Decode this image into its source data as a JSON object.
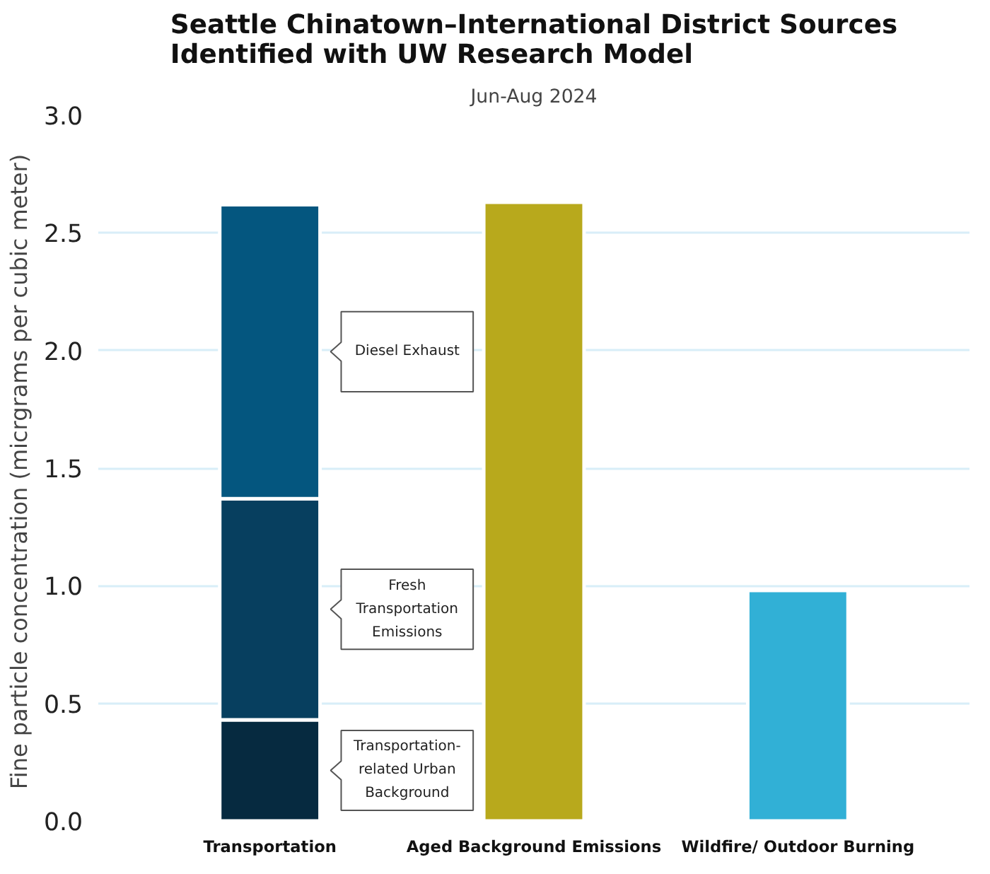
{
  "chart_data": {
    "type": "bar",
    "title": "Seattle Chinatown–International District Sources Identified with UW Research Model",
    "subtitle": "Jun-Aug 2024",
    "ylabel": "Fine particle concentration  (micrgrams per cubic meter)",
    "categories": [
      "Transportation",
      "Aged Background Emissions",
      "Wildfire/ Outdoor Burning"
    ],
    "stacked": true,
    "series": [
      {
        "name": "Transportation-related Urban Background",
        "color": "#062a40",
        "values": [
          0.43,
          null,
          null
        ]
      },
      {
        "name": "Fresh Transportation Emissions",
        "color": "#073f5f",
        "values": [
          0.94,
          null,
          null
        ]
      },
      {
        "name": "Diesel Exhaust",
        "color": "#04567f",
        "values": [
          1.25,
          null,
          null
        ]
      },
      {
        "colors": [
          "#b8a91c",
          "#b8a91c",
          "#31b0d6"
        ],
        "values": [
          null,
          2.63,
          0.98
        ]
      }
    ],
    "ylim": [
      0,
      3.0
    ],
    "yticks": [
      {
        "value": 0,
        "label": "0.0"
      },
      0.5,
      {
        "value": 1,
        "label": "1.0"
      },
      1.5,
      {
        "value": 2,
        "label": "2.0"
      },
      2.5,
      {
        "value": 3,
        "label": "3.0"
      }
    ],
    "grid": "y",
    "legend": false
  }
}
